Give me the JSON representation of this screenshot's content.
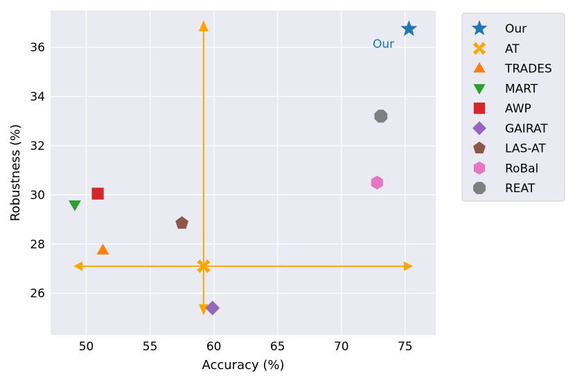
{
  "chart_data": {
    "type": "scatter",
    "title": "",
    "xlabel": "Accuracy (%)",
    "ylabel": "Robustness (%)",
    "xlim": [
      47.2,
      77.4
    ],
    "ylim": [
      24.3,
      37.5
    ],
    "xticks": [
      50,
      55,
      60,
      65,
      70,
      75
    ],
    "yticks": [
      26,
      28,
      30,
      32,
      34,
      36
    ],
    "grid": true,
    "legend_position": "outside-right",
    "series": [
      {
        "name": "Our",
        "marker": "star",
        "color": "#1f77b4",
        "x": 75.3,
        "y": 36.75
      },
      {
        "name": "AT",
        "marker": "x",
        "color": "#ffa500",
        "x": 59.2,
        "y": 27.1
      },
      {
        "name": "TRADES",
        "marker": "triangle-up",
        "color": "#ff7f0e",
        "x": 51.3,
        "y": 27.75
      },
      {
        "name": "MART",
        "marker": "triangle-down",
        "color": "#2ca02c",
        "x": 49.1,
        "y": 29.6
      },
      {
        "name": "AWP",
        "marker": "square",
        "color": "#d62728",
        "x": 50.9,
        "y": 30.05
      },
      {
        "name": "GAIRAT",
        "marker": "diamond",
        "color": "#9467bd",
        "x": 59.9,
        "y": 25.4
      },
      {
        "name": "LAS-AT",
        "marker": "pentagon",
        "color": "#8c564b",
        "x": 57.5,
        "y": 28.85
      },
      {
        "name": "RoBal",
        "marker": "hexagon",
        "color": "#e377c2",
        "x": 72.8,
        "y": 30.5
      },
      {
        "name": "REAT",
        "marker": "octagon",
        "color": "#7f7f7f",
        "x": 73.1,
        "y": 33.2
      }
    ],
    "annotations": [
      {
        "text": "Our",
        "x": 73.3,
        "y": 36.15,
        "color": "#1f77b4"
      }
    ],
    "arrows": {
      "color": "#ffa500",
      "origin": [
        59.2,
        27.1
      ],
      "horizontal": [
        49.0,
        75.6
      ],
      "vertical": [
        25.1,
        37.1
      ]
    }
  }
}
